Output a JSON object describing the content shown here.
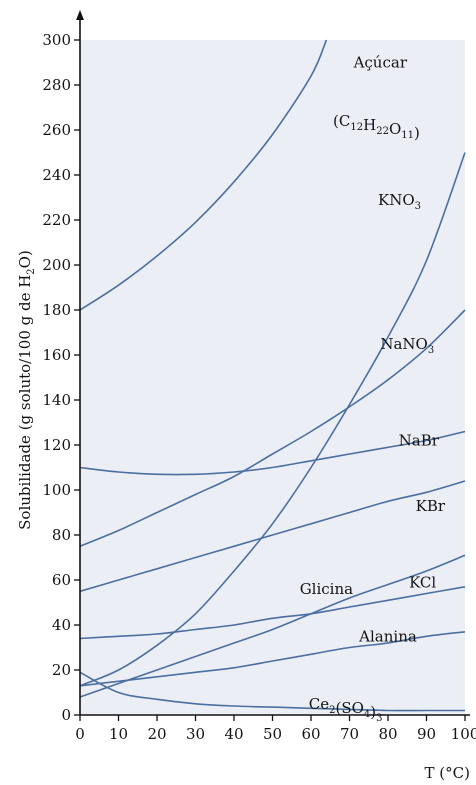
{
  "chart_data": {
    "type": "line",
    "title": "",
    "xlabel": "T (°C)",
    "ylabel": "Solubilidade (g soluto/100 g de H2O)",
    "xlim": [
      0,
      100
    ],
    "ylim": [
      0,
      300
    ],
    "x_ticks": [
      0,
      10,
      20,
      30,
      40,
      50,
      60,
      70,
      80,
      90,
      100
    ],
    "y_ticks": [
      0,
      20,
      40,
      60,
      80,
      100,
      120,
      140,
      160,
      180,
      200,
      220,
      240,
      260,
      280,
      300
    ],
    "grid": false,
    "line_color": "#4a6fa0",
    "background": "#eceef5",
    "series": [
      {
        "name": "Açúcar (C12H22O11)",
        "x": [
          0,
          10,
          20,
          30,
          40,
          50,
          60,
          64
        ],
        "y": [
          180,
          191,
          204,
          219,
          237,
          258,
          284,
          300
        ]
      },
      {
        "name": "KNO3",
        "x": [
          0,
          10,
          20,
          30,
          40,
          50,
          60,
          70,
          80,
          90,
          100
        ],
        "y": [
          13,
          20,
          31,
          45,
          64,
          85,
          110,
          138,
          168,
          202,
          250
        ]
      },
      {
        "name": "NaNO3",
        "x": [
          0,
          10,
          20,
          30,
          40,
          50,
          60,
          70,
          80,
          90,
          100
        ],
        "y": [
          75,
          82,
          90,
          98,
          106,
          116,
          126,
          137,
          149,
          163,
          180
        ]
      },
      {
        "name": "NaBr",
        "x": [
          0,
          10,
          20,
          30,
          40,
          50,
          60,
          70,
          80,
          90,
          100
        ],
        "y": [
          110,
          108,
          107,
          107,
          108,
          110,
          113,
          116,
          119,
          122,
          126
        ]
      },
      {
        "name": "KBr",
        "x": [
          0,
          10,
          20,
          30,
          40,
          50,
          60,
          70,
          80,
          90,
          100
        ],
        "y": [
          55,
          60,
          65,
          70,
          75,
          80,
          85,
          90,
          95,
          99,
          104
        ]
      },
      {
        "name": "Glicina",
        "x": [
          0,
          10,
          20,
          30,
          40,
          50,
          60,
          70,
          80,
          90,
          100
        ],
        "y": [
          8,
          14,
          20,
          26,
          32,
          38,
          45,
          52,
          58,
          64,
          71
        ]
      },
      {
        "name": "KCl",
        "x": [
          0,
          10,
          20,
          30,
          40,
          50,
          60,
          70,
          80,
          90,
          100
        ],
        "y": [
          34,
          35,
          36,
          38,
          40,
          43,
          45,
          48,
          51,
          54,
          57
        ]
      },
      {
        "name": "Alanina",
        "x": [
          0,
          10,
          20,
          30,
          40,
          50,
          60,
          70,
          80,
          90,
          100
        ],
        "y": [
          13,
          15,
          17,
          19,
          21,
          24,
          27,
          30,
          32,
          35,
          37
        ]
      },
      {
        "name": "Ce2(SO4)3",
        "x": [
          0,
          10,
          20,
          30,
          40,
          50,
          60,
          70,
          80,
          90,
          100
        ],
        "y": [
          19,
          10,
          7,
          5,
          4,
          3.5,
          3,
          2.5,
          2,
          2,
          2
        ]
      }
    ]
  }
}
